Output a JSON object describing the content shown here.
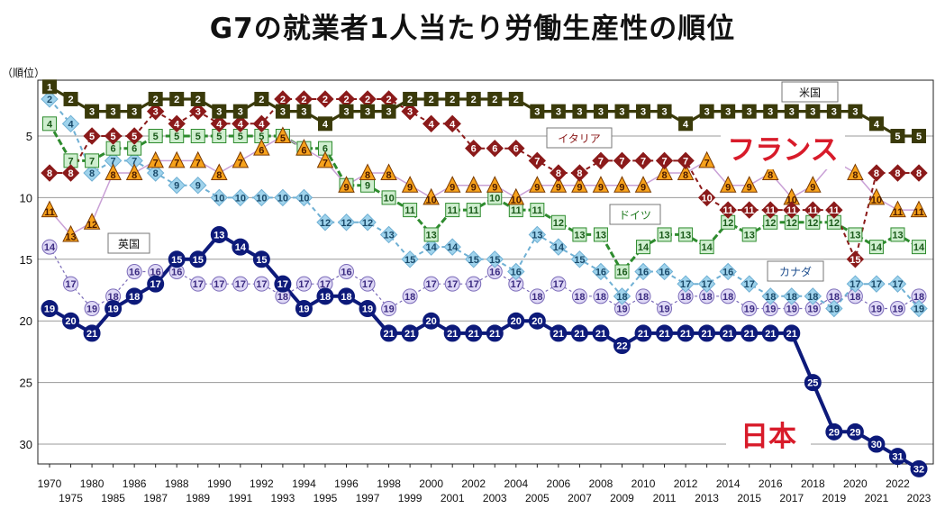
{
  "title": "G7の就業者1人当たり労働生産性の順位",
  "chart_data": {
    "type": "line",
    "ylabel": "（順位）",
    "ylim": [
      32,
      1
    ],
    "yticks": [
      5,
      10,
      15,
      20,
      25,
      30
    ],
    "grid": true,
    "x": [
      1970,
      1975,
      1980,
      1985,
      1986,
      1987,
      1988,
      1989,
      1990,
      1991,
      1992,
      1993,
      1994,
      1995,
      1996,
      1997,
      1998,
      1999,
      2000,
      2001,
      2002,
      2003,
      2004,
      2005,
      2006,
      2007,
      2008,
      2009,
      2010,
      2011,
      2012,
      2013,
      2014,
      2015,
      2016,
      2017,
      2018,
      2019,
      2020,
      2021,
      2022,
      2023
    ],
    "series": [
      {
        "name": "米国",
        "color": "#3a3a0a",
        "values": [
          1,
          2,
          3,
          3,
          3,
          2,
          2,
          2,
          3,
          3,
          2,
          3,
          3,
          4,
          3,
          3,
          3,
          2,
          2,
          2,
          2,
          2,
          2,
          3,
          3,
          3,
          3,
          3,
          3,
          3,
          4,
          3,
          3,
          3,
          3,
          3,
          3,
          3,
          3,
          4,
          5,
          5
        ]
      },
      {
        "name": "イタリア",
        "color": "#8b1a1a",
        "values": [
          8,
          8,
          5,
          5,
          5,
          3,
          4,
          3,
          4,
          4,
          4,
          2,
          2,
          2,
          2,
          2,
          2,
          3,
          4,
          4,
          6,
          6,
          6,
          7,
          8,
          8,
          7,
          7,
          7,
          7,
          7,
          10,
          11,
          11,
          11,
          11,
          11,
          11,
          15,
          8,
          8,
          8
        ]
      },
      {
        "name": "フランス",
        "color": "#d81b2a",
        "values": [
          11,
          13,
          12,
          8,
          8,
          7,
          7,
          7,
          8,
          7,
          6,
          5,
          6,
          7,
          9,
          8,
          8,
          9,
          10,
          9,
          9,
          9,
          10,
          9,
          9,
          9,
          9,
          9,
          9,
          8,
          8,
          7,
          9,
          9,
          8,
          10,
          9,
          7,
          8,
          10,
          11,
          11
        ]
      },
      {
        "name": "ドイツ",
        "color": "#1f7a1f",
        "values": [
          4,
          7,
          7,
          6,
          6,
          5,
          5,
          5,
          5,
          5,
          5,
          5,
          6,
          6,
          9,
          9,
          10,
          11,
          13,
          11,
          11,
          10,
          11,
          11,
          12,
          13,
          13,
          16,
          14,
          13,
          13,
          14,
          12,
          13,
          12,
          12,
          12,
          12,
          13,
          14,
          13,
          14
        ]
      },
      {
        "name": "カナダ",
        "color": "#3a8fc4",
        "values": [
          2,
          4,
          8,
          7,
          7,
          8,
          9,
          9,
          10,
          10,
          10,
          10,
          10,
          12,
          12,
          12,
          13,
          15,
          14,
          14,
          15,
          15,
          16,
          13,
          14,
          15,
          16,
          18,
          16,
          16,
          17,
          17,
          16,
          17,
          18,
          18,
          18,
          19,
          17,
          17,
          17,
          19
        ]
      },
      {
        "name": "英国",
        "color": "#9a8ad0",
        "values": [
          14,
          17,
          19,
          18,
          16,
          16,
          16,
          17,
          17,
          17,
          17,
          18,
          17,
          17,
          16,
          17,
          19,
          18,
          17,
          17,
          17,
          16,
          17,
          18,
          17,
          18,
          18,
          19,
          18,
          19,
          18,
          18,
          18,
          19,
          19,
          19,
          19,
          18,
          18,
          19,
          19,
          18
        ]
      },
      {
        "name": "日本",
        "color": "#0d1a7a",
        "values": [
          19,
          20,
          21,
          19,
          18,
          17,
          15,
          15,
          13,
          14,
          15,
          17,
          19,
          18,
          18,
          19,
          21,
          21,
          20,
          21,
          21,
          21,
          20,
          20,
          21,
          21,
          21,
          22,
          21,
          21,
          21,
          21,
          21,
          21,
          21,
          21,
          25,
          29,
          29,
          30,
          31,
          32
        ]
      }
    ]
  }
}
